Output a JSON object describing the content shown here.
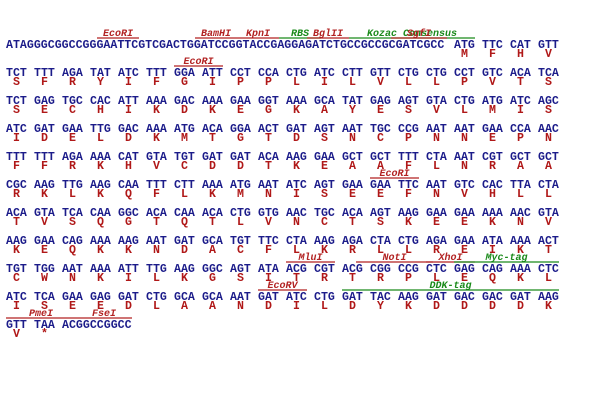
{
  "lines": [
    {
      "dna": [
        "ATAGGGCGGCCGGGAATTCGTCGACTGGATCCGGTACCGAGGAGATCTGCCGCCGCGATCGCC",
        "ATG",
        "TTC",
        "CAT",
        "GTT"
      ],
      "aa": [
        "M",
        "F",
        "H",
        "V"
      ],
      "features": [
        {
          "name": "EcoRI",
          "color": "#b22222"
        },
        {
          "name": "BamHI",
          "color": "#b22222"
        },
        {
          "name": "KpnI",
          "color": "#b22222"
        },
        {
          "name": "RBS",
          "color": "#1a8a1a"
        },
        {
          "name": "BglII",
          "color": "#b22222"
        },
        {
          "name": "Kozac Consensus",
          "color": "#1a8a1a"
        },
        {
          "name": "SgfI",
          "color": "#b22222"
        }
      ]
    },
    {
      "dna": [
        "TCT",
        "TTT",
        "AGA",
        "TAT",
        "ATC",
        "TTT",
        "GGA",
        "ATT",
        "CCT",
        "CCA",
        "CTG",
        "ATC",
        "CTT",
        "GTT",
        "CTG",
        "CTG",
        "CCT",
        "GTC",
        "ACA",
        "TCA"
      ],
      "aa": [
        "S",
        "F",
        "R",
        "Y",
        "I",
        "F",
        "G",
        "I",
        "P",
        "P",
        "L",
        "I",
        "L",
        "V",
        "L",
        "L",
        "P",
        "V",
        "T",
        "S"
      ],
      "features": [
        {
          "name": "EcoRI",
          "color": "#b22222"
        }
      ]
    },
    {
      "dna": [
        "TCT",
        "GAG",
        "TGC",
        "CAC",
        "ATT",
        "AAA",
        "GAC",
        "AAA",
        "GAA",
        "GGT",
        "AAA",
        "GCA",
        "TAT",
        "GAG",
        "AGT",
        "GTA",
        "CTG",
        "ATG",
        "ATC",
        "AGC"
      ],
      "aa": [
        "S",
        "E",
        "C",
        "H",
        "I",
        "K",
        "D",
        "K",
        "E",
        "G",
        "K",
        "A",
        "Y",
        "E",
        "S",
        "V",
        "L",
        "M",
        "I",
        "S"
      ],
      "features": []
    },
    {
      "dna": [
        "ATC",
        "GAT",
        "GAA",
        "TTG",
        "GAC",
        "AAA",
        "ATG",
        "ACA",
        "GGA",
        "ACT",
        "GAT",
        "AGT",
        "AAT",
        "TGC",
        "CCG",
        "AAT",
        "AAT",
        "GAA",
        "CCA",
        "AAC"
      ],
      "aa": [
        "I",
        "D",
        "E",
        "L",
        "D",
        "K",
        "M",
        "T",
        "G",
        "T",
        "D",
        "S",
        "N",
        "C",
        "P",
        "N",
        "N",
        "E",
        "P",
        "N"
      ],
      "features": []
    },
    {
      "dna": [
        "TTT",
        "TTT",
        "AGA",
        "AAA",
        "CAT",
        "GTA",
        "TGT",
        "GAT",
        "GAT",
        "ACA",
        "AAG",
        "GAA",
        "GCT",
        "GCT",
        "TTT",
        "CTA",
        "AAT",
        "CGT",
        "GCT",
        "GCT"
      ],
      "aa": [
        "F",
        "F",
        "R",
        "K",
        "H",
        "V",
        "C",
        "D",
        "D",
        "T",
        "K",
        "E",
        "A",
        "A",
        "F",
        "L",
        "N",
        "R",
        "A",
        "A"
      ],
      "features": []
    },
    {
      "dna": [
        "CGC",
        "AAG",
        "TTG",
        "AAG",
        "CAA",
        "TTT",
        "CTT",
        "AAA",
        "ATG",
        "AAT",
        "ATC",
        "AGT",
        "GAA",
        "GAA",
        "TTC",
        "AAT",
        "GTC",
        "CAC",
        "TTA",
        "CTA"
      ],
      "aa": [
        "R",
        "K",
        "L",
        "K",
        "Q",
        "F",
        "L",
        "K",
        "M",
        "N",
        "I",
        "S",
        "E",
        "E",
        "F",
        "N",
        "V",
        "H",
        "L",
        "L"
      ],
      "features": [
        {
          "name": "EcoRI",
          "color": "#b22222"
        }
      ]
    },
    {
      "dna": [
        "ACA",
        "GTA",
        "TCA",
        "CAA",
        "GGC",
        "ACA",
        "CAA",
        "ACA",
        "CTG",
        "GTG",
        "AAC",
        "TGC",
        "ACA",
        "AGT",
        "AAG",
        "GAA",
        "GAA",
        "AAA",
        "AAC",
        "GTA"
      ],
      "aa": [
        "T",
        "V",
        "S",
        "Q",
        "G",
        "T",
        "Q",
        "T",
        "L",
        "V",
        "N",
        "C",
        "T",
        "S",
        "K",
        "E",
        "E",
        "K",
        "N",
        "V"
      ],
      "features": []
    },
    {
      "dna": [
        "AAG",
        "GAA",
        "CAG",
        "AAA",
        "AAG",
        "AAT",
        "GAT",
        "GCA",
        "TGT",
        "TTC",
        "CTA",
        "AAG",
        "AGA",
        "CTA",
        "CTG",
        "AGA",
        "GAA",
        "ATA",
        "AAA",
        "ACT"
      ],
      "aa": [
        "K",
        "E",
        "Q",
        "K",
        "K",
        "N",
        "D",
        "A",
        "C",
        "F",
        "L",
        "K",
        "R",
        "L",
        "L",
        "R",
        "E",
        "I",
        "K",
        "T"
      ],
      "features": []
    },
    {
      "dna": [
        "TGT",
        "TGG",
        "AAT",
        "AAA",
        "ATT",
        "TTG",
        "AAG",
        "GGC",
        "AGT",
        "ATA",
        "ACG",
        "CGT",
        "ACG",
        "CGG",
        "CCG",
        "CTC",
        "GAG",
        "CAG",
        "AAA",
        "CTC"
      ],
      "aa": [
        "C",
        "W",
        "N",
        "K",
        "I",
        "L",
        "K",
        "G",
        "S",
        "I",
        "T",
        "R",
        "T",
        "R",
        "P",
        "L",
        "E",
        "Q",
        "K",
        "L"
      ],
      "features": [
        {
          "name": "MluI",
          "color": "#b22222"
        },
        {
          "name": "NotI",
          "color": "#b22222"
        },
        {
          "name": "XhoI",
          "color": "#b22222"
        },
        {
          "name": "Myc-tag",
          "color": "#1a8a1a"
        }
      ]
    },
    {
      "dna": [
        "ATC",
        "TCA",
        "GAA",
        "GAG",
        "GAT",
        "CTG",
        "GCA",
        "GCA",
        "AAT",
        "GAT",
        "ATC",
        "CTG",
        "GAT",
        "TAC",
        "AAG",
        "GAT",
        "GAC",
        "GAC",
        "GAT",
        "AAG"
      ],
      "aa": [
        "I",
        "S",
        "E",
        "E",
        "D",
        "L",
        "A",
        "A",
        "N",
        "D",
        "I",
        "L",
        "D",
        "Y",
        "K",
        "D",
        "D",
        "D",
        "D",
        "K"
      ],
      "features": [
        {
          "name": "EcoRV",
          "color": "#b22222"
        },
        {
          "name": "DDK-tag",
          "color": "#1a8a1a"
        }
      ]
    },
    {
      "dna": [
        "GTT",
        "TAA",
        "ACGGCCGGCC"
      ],
      "aa": [
        "V",
        "*"
      ],
      "features": [
        {
          "name": "PmeI",
          "color": "#b22222"
        },
        {
          "name": "FseI",
          "color": "#b22222"
        }
      ]
    }
  ]
}
